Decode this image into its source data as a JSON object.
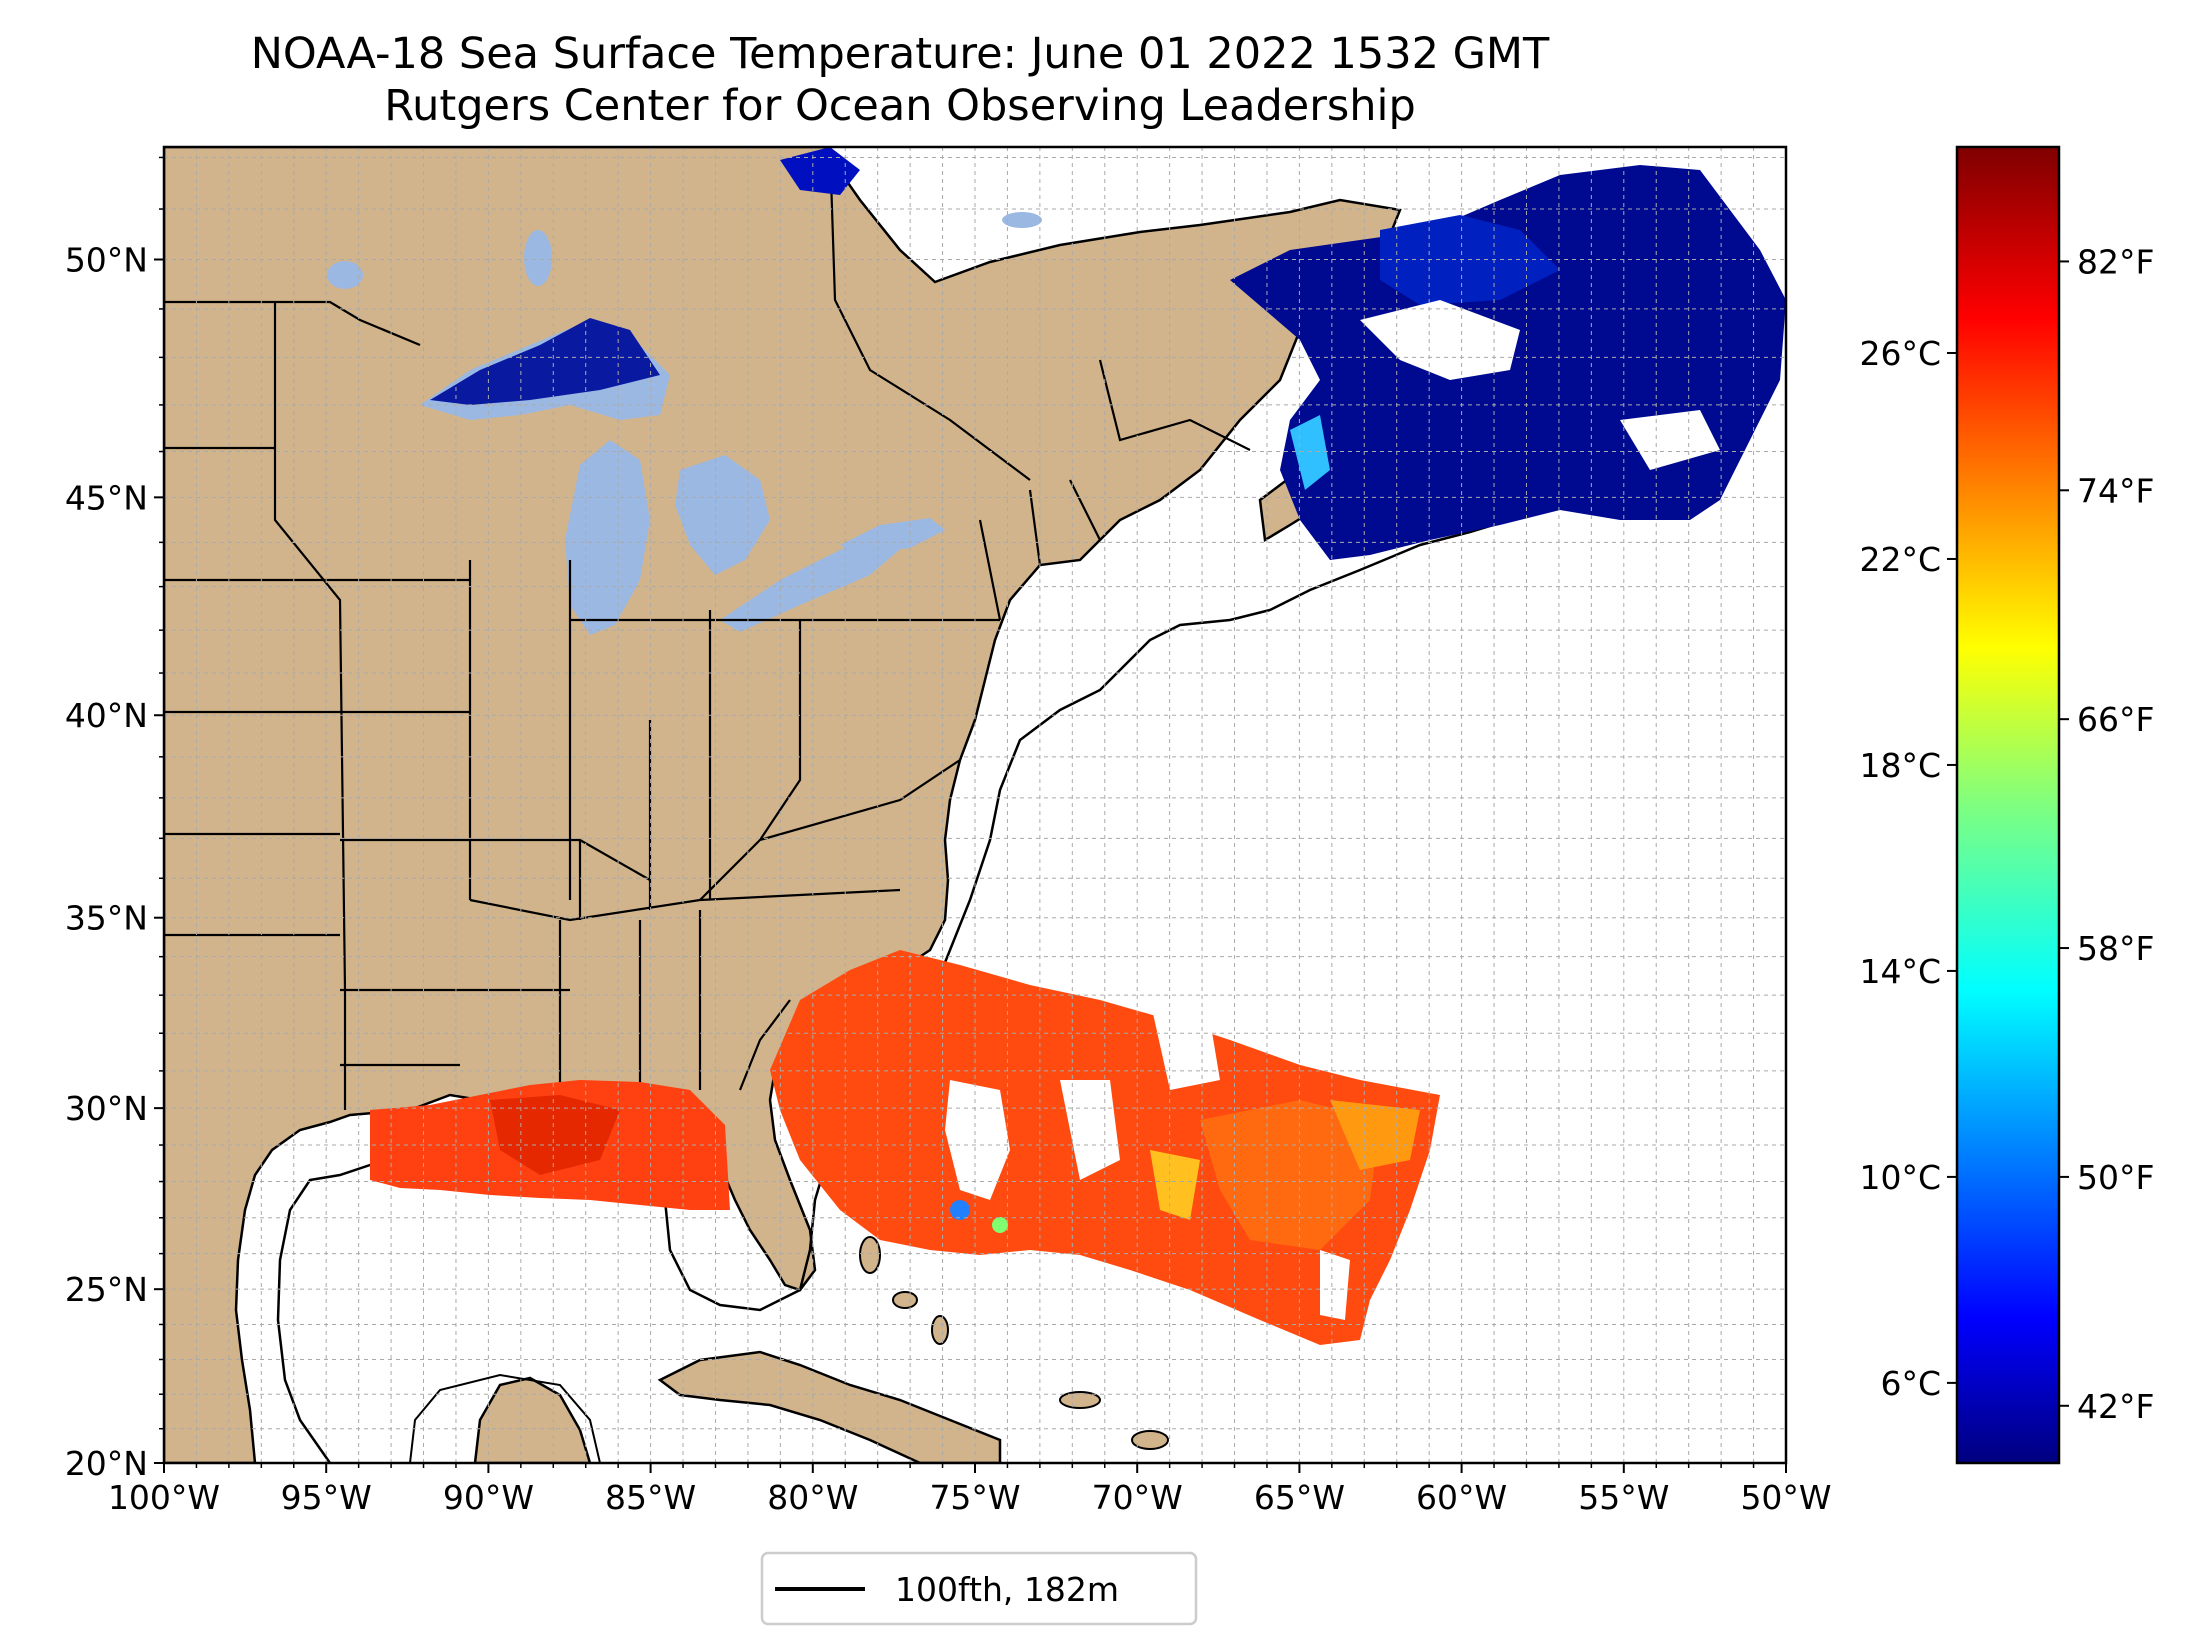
{
  "title": "NOAA-18 Sea Surface Temperature: June 01 2022 1532 GMT",
  "subtitle": "Rutgers Center for Ocean Observing Leadership",
  "map": {
    "lon_range": [
      -100,
      -50
    ],
    "lat_range": [
      20,
      52.2
    ],
    "lon_ticks": [
      "100°W",
      "95°W",
      "90°W",
      "85°W",
      "80°W",
      "75°W",
      "70°W",
      "65°W",
      "60°W",
      "55°W",
      "50°W"
    ],
    "lat_ticks": [
      "20°N",
      "25°N",
      "30°N",
      "35°N",
      "40°N",
      "45°N",
      "50°N"
    ],
    "grid": "on",
    "land_color": "#d2b48c",
    "lakes_color": "#9bb8e3",
    "ocean_color": "#ffffff"
  },
  "colorbar": {
    "colormap": "jet",
    "celsius_ticks": [
      "6°C",
      "10°C",
      "14°C",
      "18°C",
      "22°C",
      "26°C"
    ],
    "fahrenheit_ticks": [
      "42°F",
      "50°F",
      "58°F",
      "66°F",
      "74°F",
      "82°F"
    ]
  },
  "legend": {
    "label": "100fth, 182m",
    "line_color": "#000000"
  }
}
